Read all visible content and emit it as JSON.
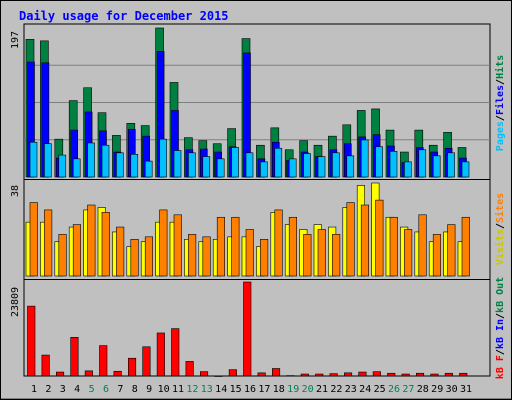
{
  "chart_data": {
    "type": "bar",
    "title": "Daily usage for December 2015",
    "categories": [
      "1",
      "2",
      "3",
      "4",
      "5",
      "6",
      "7",
      "8",
      "9",
      "10",
      "11",
      "12",
      "13",
      "14",
      "15",
      "16",
      "17",
      "18",
      "19",
      "20",
      "21",
      "22",
      "23",
      "24",
      "25",
      "26",
      "27",
      "28",
      "29",
      "30",
      "31"
    ],
    "weekend_days": [
      "5",
      "6",
      "12",
      "13",
      "19",
      "20",
      "26",
      "27"
    ],
    "panels": [
      {
        "name": "hits_files_pages",
        "ymax": 197,
        "ymax_label": "197",
        "ylabel_parts": [
          "Pages",
          "/",
          "Files",
          "/",
          "Hits"
        ],
        "series": [
          {
            "name": "Hits",
            "color": "#008040",
            "values": [
              182,
              180,
              50,
              101,
              118,
              85,
              55,
              71,
              68,
              197,
              125,
              52,
              48,
              44,
              64,
              183,
              42,
              65,
              36,
              48,
              42,
              54,
              69,
              88,
              90,
              62,
              33,
              62,
              42,
              59,
              39
            ]
          },
          {
            "name": "Files",
            "color": "#0000ff",
            "values": [
              152,
              151,
              25,
              62,
              86,
              61,
              33,
              63,
              54,
              166,
              88,
              36,
              37,
              33,
              40,
              164,
              24,
              46,
              22,
              33,
              27,
              36,
              44,
              53,
              56,
              41,
              19,
              39,
              33,
              38,
              25
            ]
          },
          {
            "name": "Pages",
            "color": "#00c0ff",
            "values": [
              46,
              44,
              29,
              24,
              45,
              42,
              32,
              30,
              21,
              50,
              35,
              32,
              27,
              24,
              39,
              32,
              20,
              38,
              24,
              31,
              27,
              32,
              28,
              49,
              40,
              34,
              20,
              36,
              28,
              32,
              20
            ]
          }
        ]
      },
      {
        "name": "visits_sites",
        "ymax": 38,
        "ymax_label": "38",
        "ylabel_parts": [
          "Visits",
          "/",
          "Sites"
        ],
        "series": [
          {
            "name": "Visits",
            "color": "#ffff00",
            "values": [
              22,
              22,
              14,
              20,
              27,
              28,
              18,
              12,
              14,
              22,
              22,
              15,
              14,
              15,
              16,
              16,
              12,
              26,
              21,
              19,
              21,
              20,
              28,
              37,
              38,
              24,
              20,
              18,
              14,
              18,
              14
            ]
          },
          {
            "name": "Sites",
            "color": "#ff8000",
            "values": [
              30,
              27,
              17,
              21,
              29,
              26,
              20,
              15,
              16,
              27,
              25,
              17,
              16,
              24,
              24,
              19,
              15,
              27,
              24,
              17,
              19,
              17,
              30,
              29,
              31,
              24,
              19,
              25,
              17,
              21,
              24
            ]
          }
        ]
      },
      {
        "name": "kbytes",
        "ymax": 23809,
        "ymax_label": "23809",
        "ylabel_parts": [
          "kB F",
          "/",
          "kB In",
          "/",
          "kB Out"
        ],
        "series": [
          {
            "name": "kB F",
            "color": "#ff0000",
            "values": [
              17700,
              5300,
              1000,
              9800,
              1300,
              7700,
              1200,
              4500,
              7400,
              10900,
              12000,
              3700,
              1100,
              0,
              1600,
              23809,
              800,
              1900,
              100,
              500,
              500,
              600,
              800,
              1000,
              1100,
              700,
              500,
              700,
              500,
              700,
              700
            ]
          }
        ]
      }
    ]
  },
  "colors": {
    "background": "#c0c0c0",
    "plot_background": "#c0c0c0",
    "title": "#0000ff",
    "weekday_label": "#000000",
    "weekend_label": "#00805c",
    "kb_in": "#0000ff",
    "kb_out": "#008040",
    "divider": "#000000"
  }
}
